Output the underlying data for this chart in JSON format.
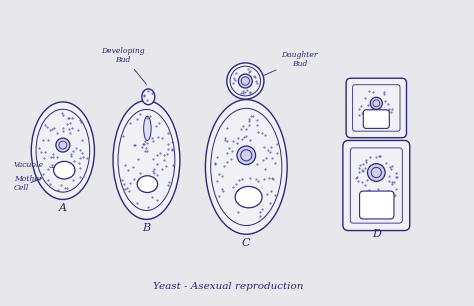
{
  "bg_color": "#e8e8ec",
  "cell_color": "#f0f0f5",
  "cell_edge_color": "#2a2a7a",
  "nucleus_color": "#d0d0ee",
  "vacuole_color": "#ffffff",
  "dot_color": "#4444aa",
  "title": "Yeast - Asexual reproduction",
  "label_A": "A",
  "label_B": "B",
  "label_C": "C",
  "label_D": "D",
  "ann_dev_bud": "Developing\nBud",
  "ann_vacuole": "Vacuole",
  "ann_mother_cell": "Mother\nCell",
  "ann_daughter_bud": "Daughter\nBud",
  "figsize": [
    4.74,
    3.06
  ],
  "dpi": 100
}
